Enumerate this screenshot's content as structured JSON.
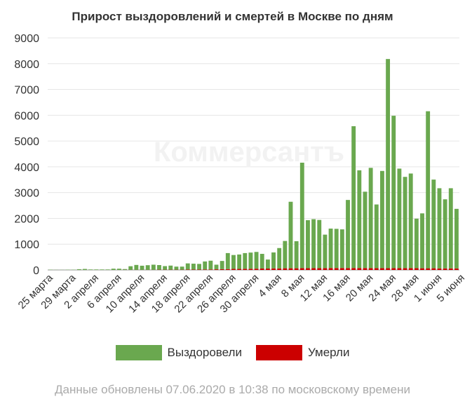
{
  "chart_data": {
    "type": "bar",
    "stacked": true,
    "title": "Прирост выздоровлений и смертей в Москве по дням",
    "watermark": "Коммерсантъ",
    "ylim": [
      0,
      9000
    ],
    "yticks": [
      0,
      1000,
      2000,
      3000,
      4000,
      5000,
      6000,
      7000,
      8000,
      9000
    ],
    "grid": true,
    "legend_position": "bottom",
    "tick_labels": [
      {
        "index": 0,
        "label": "25 марта"
      },
      {
        "index": 4,
        "label": "29 марта"
      },
      {
        "index": 8,
        "label": "2 апреля"
      },
      {
        "index": 12,
        "label": "6 апреля"
      },
      {
        "index": 16,
        "label": "10 апреля"
      },
      {
        "index": 20,
        "label": "14 апреля"
      },
      {
        "index": 24,
        "label": "18 апреля"
      },
      {
        "index": 28,
        "label": "22 апреля"
      },
      {
        "index": 32,
        "label": "26 апреля"
      },
      {
        "index": 36,
        "label": "30 апреля"
      },
      {
        "index": 40,
        "label": "4 мая"
      },
      {
        "index": 44,
        "label": "8 мая"
      },
      {
        "index": 48,
        "label": "12 мая"
      },
      {
        "index": 52,
        "label": "16 мая"
      },
      {
        "index": 56,
        "label": "20 мая"
      },
      {
        "index": 60,
        "label": "24 мая"
      },
      {
        "index": 64,
        "label": "28 мая"
      },
      {
        "index": 68,
        "label": "1 июня"
      },
      {
        "index": 72,
        "label": "5 июня"
      }
    ],
    "series": [
      {
        "name": "Выздоровели",
        "color": "#6aa84f",
        "values": [
          10,
          5,
          5,
          10,
          10,
          30,
          40,
          20,
          20,
          20,
          20,
          50,
          50,
          30,
          140,
          190,
          160,
          180,
          200,
          180,
          140,
          160,
          120,
          120,
          240,
          230,
          220,
          310,
          340,
          180,
          320,
          620,
          540,
          560,
          610,
          630,
          650,
          570,
          350,
          620,
          790,
          1060,
          2580,
          1050,
          4090,
          1860,
          1900,
          1870,
          1300,
          1530,
          1520,
          1500,
          2640,
          5500,
          3790,
          2960,
          3890,
          2470,
          3770,
          8110,
          5910,
          3860,
          3540,
          3670,
          1920,
          2130,
          6090,
          3440,
          3110,
          2680,
          3110,
          2310
        ]
      },
      {
        "name": "Умерли",
        "color": "#cc0000",
        "values": [
          0,
          0,
          0,
          0,
          0,
          0,
          0,
          0,
          0,
          0,
          0,
          0,
          0,
          5,
          5,
          5,
          5,
          5,
          5,
          10,
          10,
          10,
          10,
          10,
          15,
          15,
          15,
          20,
          20,
          25,
          30,
          35,
          40,
          40,
          45,
          45,
          50,
          55,
          55,
          60,
          60,
          65,
          65,
          65,
          70,
          70,
          70,
          70,
          70,
          75,
          75,
          75,
          75,
          75,
          75,
          75,
          70,
          70,
          70,
          70,
          70,
          70,
          70,
          70,
          70,
          65,
          65,
          65,
          60,
          60,
          60,
          60
        ]
      }
    ]
  },
  "footer_note": "Данные обновлены 07.06.2020 в 10:38 по московскому времени"
}
